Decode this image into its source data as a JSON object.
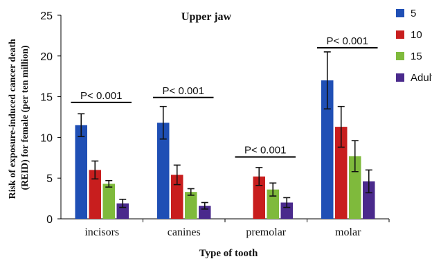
{
  "chart_data": {
    "type": "bar",
    "title": "Upper jaw",
    "xlabel": "Type of tooth",
    "ylabel": "Risk of exposure-induced cancer death (REID) for female (per ten million)",
    "ylabel_lines": [
      "Risk of exposure-induced cancer death",
      "(REID) for female (per ten million)"
    ],
    "ylim": [
      0,
      25
    ],
    "yticks": [
      "0",
      "5",
      "10",
      "15",
      "20",
      "25"
    ],
    "ytick_values": [
      0,
      5,
      10,
      15,
      20,
      25
    ],
    "categories": [
      "incisors",
      "canines",
      "premolar",
      "molar"
    ],
    "series": [
      {
        "name": "5",
        "color": "#1f4fb5",
        "values": [
          11.5,
          11.8,
          null,
          17.0
        ],
        "errors": [
          1.4,
          2.0,
          null,
          3.5
        ]
      },
      {
        "name": "10",
        "color": "#c81e1e",
        "values": [
          6.0,
          5.4,
          5.2,
          11.3
        ],
        "errors": [
          1.1,
          1.2,
          1.1,
          2.5
        ]
      },
      {
        "name": "15",
        "color": "#7fba3c",
        "values": [
          4.3,
          3.3,
          3.6,
          7.7
        ],
        "errors": [
          0.4,
          0.4,
          0.8,
          1.9
        ]
      },
      {
        "name": "Adult",
        "color": "#4a2a8c",
        "values": [
          1.9,
          1.6,
          2.0,
          4.6
        ],
        "errors": [
          0.5,
          0.4,
          0.6,
          1.4
        ]
      }
    ],
    "annotations": [
      {
        "text": "P< 0.001",
        "category": "incisors",
        "level": 14.3
      },
      {
        "text": "P< 0.001",
        "category": "canines",
        "level": 14.9
      },
      {
        "text": "P< 0.001",
        "category": "premolar",
        "level": 7.6
      },
      {
        "text": "P< 0.001",
        "category": "molar",
        "level": 21.0
      }
    ],
    "legend_position": "right",
    "grid": false
  }
}
